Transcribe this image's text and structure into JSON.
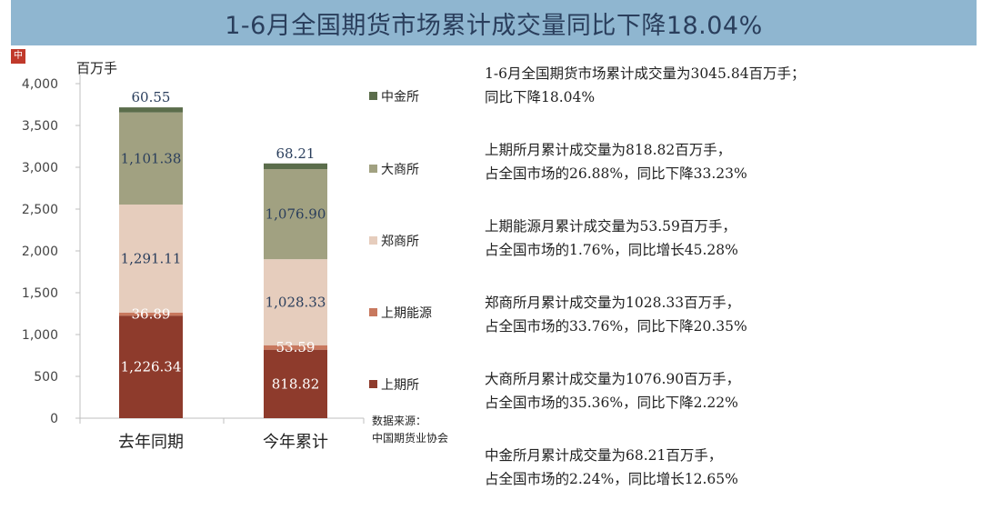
{
  "title": "1-6月全国期货市场累计成交量同比下降18.04%",
  "logo_text": "中",
  "chart_data": {
    "type": "bar",
    "stacked": true,
    "unit_label": "百万手",
    "categories": [
      "去年同期",
      "今年累计"
    ],
    "ylim": [
      0,
      4000
    ],
    "yticks": [
      "0",
      "500",
      "1,000",
      "1,500",
      "2,000",
      "2,500",
      "3,000",
      "3,500",
      "4,000"
    ],
    "series": [
      {
        "name": "上期所",
        "color": "#8e3b2c",
        "values": [
          1226.34,
          818.82
        ],
        "labels": [
          "1,226.34",
          "818.82"
        ],
        "label_color": "#ffffff"
      },
      {
        "name": "上期能源",
        "color": "#c8785e",
        "values": [
          36.89,
          53.59
        ],
        "labels": [
          "36.89",
          "53.59"
        ],
        "label_color": "#ffffff"
      },
      {
        "name": "郑商所",
        "color": "#e6cdbd",
        "values": [
          1291.11,
          1028.33
        ],
        "labels": [
          "1,291.11",
          "1,028.33"
        ],
        "label_color": "#2a3e5c"
      },
      {
        "name": "大商所",
        "color": "#a1a181",
        "values": [
          1101.38,
          1076.9
        ],
        "labels": [
          "1,101.38",
          "1,076.90"
        ],
        "label_color": "#2a3e5c"
      },
      {
        "name": "中金所",
        "color": "#5b6d4b",
        "values": [
          60.55,
          68.21
        ],
        "labels": [
          "60.55",
          "68.21"
        ],
        "label_color": "#2a3e5c"
      }
    ],
    "legend_order": [
      "中金所",
      "大商所",
      "郑商所",
      "上期能源",
      "上期所"
    ],
    "legend_placement": "right",
    "grid": false
  },
  "source": {
    "line1": "数据来源：",
    "line2": "中国期货业协会"
  },
  "descriptions": [
    {
      "line1": "1-6月全国期货市场累计成交量为3045.84百万手；",
      "line2": "同比下降18.04%"
    },
    {
      "line1": "上期所月累计成交量为818.82百万手，",
      "line2": "占全国市场的26.88%，同比下降33.23%"
    },
    {
      "line1": "上期能源月累计成交量为53.59百万手，",
      "line2": "占全国市场的1.76%，同比增长45.28%"
    },
    {
      "line1": "郑商所月累计成交量为1028.33百万手，",
      "line2": "占全国市场的33.76%，同比下降20.35%"
    },
    {
      "line1": "大商所月累计成交量为1076.90百万手，",
      "line2": "占全国市场的35.36%，同比下降2.22%"
    },
    {
      "line1": "中金所月累计成交量为68.21百万手，",
      "line2": "占全国市场的2.24%，同比增长12.65%"
    }
  ]
}
